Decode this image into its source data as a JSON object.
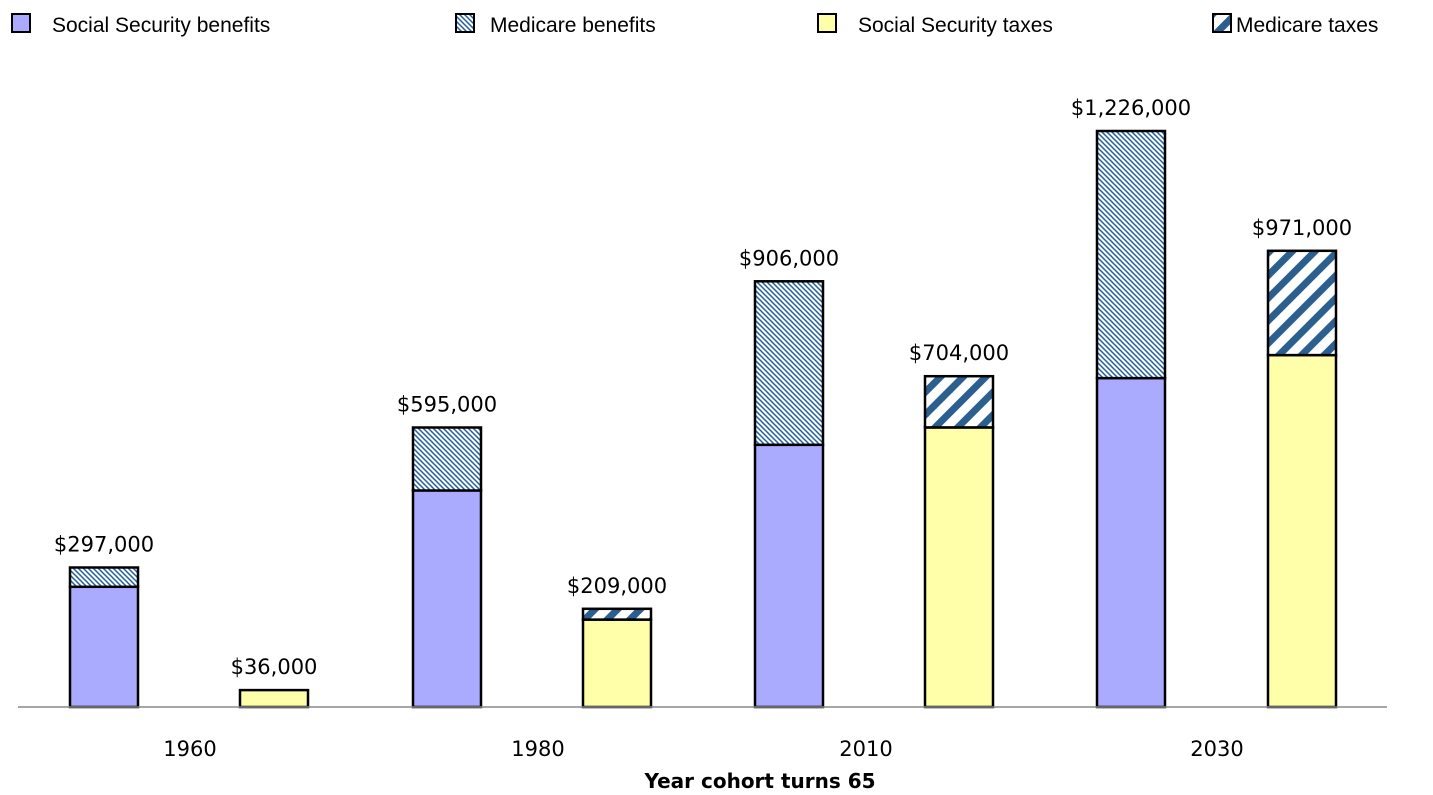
{
  "chart_data": {
    "type": "bar",
    "stacked": true,
    "title": "",
    "xlabel": "Year cohort turns 65",
    "ylabel": "",
    "ylim": [
      0,
      1300000
    ],
    "grid": false,
    "legend_position": "top",
    "categories": [
      "1960",
      "1980",
      "2010",
      "2030"
    ],
    "series": [
      {
        "name": "Social Security benefits",
        "group": "benefits",
        "color": "#aaaaff",
        "pattern": "solid",
        "values": [
          256000,
          461000,
          558000,
          700000
        ]
      },
      {
        "name": "Medicare benefits",
        "group": "benefits",
        "color": "#1f5f9f",
        "pattern": "fine-diagonal",
        "values": [
          41000,
          134000,
          348000,
          526000
        ]
      },
      {
        "name": "Social Security taxes",
        "group": "taxes",
        "color": "#ffffaa",
        "pattern": "solid",
        "values": [
          36000,
          186000,
          595000,
          749000
        ]
      },
      {
        "name": "Medicare taxes",
        "group": "taxes",
        "color": "#2a5f8f",
        "pattern": "wide-diagonal",
        "values": [
          0,
          23000,
          109000,
          222000
        ]
      }
    ],
    "totals": {
      "benefits": [
        "$297,000",
        "$595,000",
        "$906,000",
        "$1,226,000"
      ],
      "taxes": [
        "$36,000",
        "$209,000",
        "$704,000",
        "$971,000"
      ]
    }
  }
}
